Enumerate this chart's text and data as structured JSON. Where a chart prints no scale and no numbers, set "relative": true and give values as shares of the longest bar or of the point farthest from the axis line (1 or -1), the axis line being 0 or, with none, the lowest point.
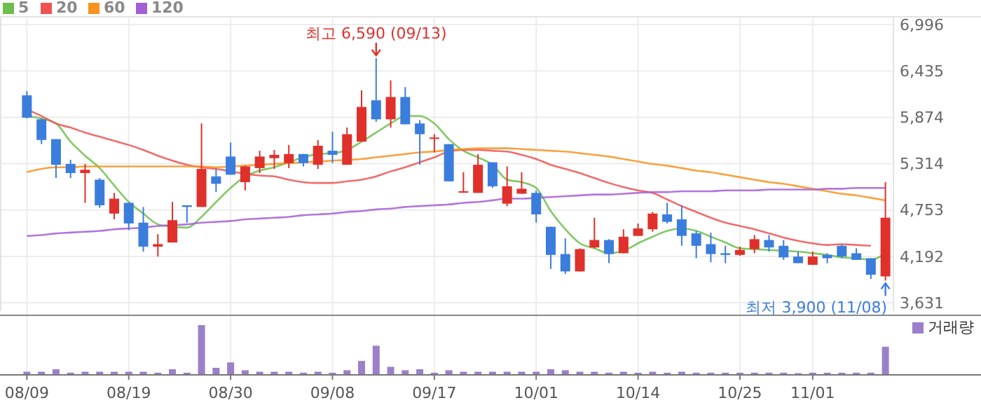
{
  "chart_data": [
    {
      "type": "candlestick",
      "categories": [
        null,
        null,
        null,
        null,
        null,
        null,
        null,
        null,
        null,
        null,
        null,
        null,
        null,
        null,
        null,
        null,
        null,
        null,
        null,
        null,
        null,
        null,
        null,
        null,
        null,
        null,
        null,
        null,
        null,
        null,
        null,
        null,
        null,
        null,
        null,
        null,
        null,
        null,
        null,
        null,
        null,
        null,
        null,
        null,
        null,
        null,
        null,
        null,
        null,
        null,
        null,
        null,
        null,
        null,
        null,
        null,
        null,
        null,
        null,
        null
      ],
      "ohlc": [
        [
          6140,
          6190,
          5860,
          5870
        ],
        [
          5850,
          5860,
          5550,
          5600
        ],
        [
          5610,
          5610,
          5140,
          5300
        ],
        [
          5310,
          5360,
          5140,
          5200
        ],
        [
          5200,
          5310,
          4840,
          5240
        ],
        [
          5120,
          5140,
          4780,
          4810
        ],
        [
          4710,
          4960,
          4640,
          4890
        ],
        [
          4840,
          4840,
          4510,
          4590
        ],
        [
          4600,
          4790,
          4250,
          4310
        ],
        [
          4310,
          4460,
          4190,
          4340
        ],
        [
          4360,
          4850,
          4360,
          4630
        ],
        [
          4810,
          4810,
          4600,
          4790
        ],
        [
          4790,
          5800,
          4790,
          5250
        ],
        [
          5160,
          5250,
          4970,
          5070
        ],
        [
          5400,
          5570,
          5180,
          5180
        ],
        [
          5090,
          5290,
          4990,
          5280
        ],
        [
          5260,
          5470,
          5200,
          5400
        ],
        [
          5380,
          5480,
          5250,
          5420
        ],
        [
          5320,
          5540,
          5260,
          5430
        ],
        [
          5430,
          5430,
          5280,
          5320
        ],
        [
          5300,
          5600,
          5250,
          5530
        ],
        [
          5470,
          5700,
          5320,
          5420
        ],
        [
          5300,
          5750,
          5300,
          5670
        ],
        [
          5580,
          6200,
          5580,
          6000
        ],
        [
          6080,
          6590,
          5820,
          5850
        ],
        [
          5850,
          6320,
          5750,
          6120
        ],
        [
          6120,
          6240,
          5790,
          5790
        ],
        [
          5800,
          5840,
          5300,
          5670
        ],
        [
          5620,
          5670,
          5450,
          5630
        ],
        [
          5550,
          5550,
          5100,
          5100
        ],
        [
          4970,
          5210,
          4960,
          4980
        ],
        [
          4960,
          5430,
          4960,
          5300
        ],
        [
          5330,
          5330,
          5020,
          5040
        ],
        [
          4830,
          5280,
          4800,
          5040
        ],
        [
          4950,
          5210,
          4950,
          5010
        ],
        [
          4960,
          4990,
          4600,
          4700
        ],
        [
          4550,
          4550,
          4040,
          4210
        ],
        [
          4220,
          4410,
          3980,
          4010
        ],
        [
          4010,
          4290,
          4010,
          4280
        ],
        [
          4300,
          4660,
          4290,
          4390
        ],
        [
          4390,
          4400,
          4110,
          4220
        ],
        [
          4230,
          4520,
          4230,
          4430
        ],
        [
          4440,
          4590,
          4440,
          4530
        ],
        [
          4520,
          4730,
          4490,
          4710
        ],
        [
          4700,
          4840,
          4590,
          4610
        ],
        [
          4640,
          4810,
          4320,
          4440
        ],
        [
          4470,
          4500,
          4170,
          4320
        ],
        [
          4340,
          4480,
          4120,
          4220
        ],
        [
          4230,
          4320,
          4110,
          4210
        ],
        [
          4210,
          4310,
          4200,
          4270
        ],
        [
          4280,
          4450,
          4230,
          4400
        ],
        [
          4390,
          4450,
          4250,
          4300
        ],
        [
          4320,
          4390,
          4150,
          4180
        ],
        [
          4190,
          4250,
          4110,
          4110
        ],
        [
          4090,
          4250,
          4090,
          4190
        ],
        [
          4210,
          4230,
          4110,
          4170
        ],
        [
          4320,
          4340,
          4170,
          4190
        ],
        [
          4230,
          4290,
          4150,
          4150
        ],
        [
          4170,
          4170,
          3920,
          3970
        ],
        [
          3950,
          5090,
          3900,
          4660
        ]
      ],
      "series": [
        {
          "name": "5",
          "type": "line",
          "color": "#6cbf4a",
          "values": [
            5890,
            5860,
            5800,
            5580,
            5410,
            5260,
            5050,
            4850,
            4710,
            4580,
            4550,
            4540,
            4670,
            4850,
            5020,
            5160,
            5230,
            5270,
            5330,
            5390,
            5430,
            5440,
            5480,
            5580,
            5690,
            5800,
            5890,
            5890,
            5800,
            5610,
            5470,
            5390,
            5300,
            5120,
            5090,
            5020,
            4740,
            4520,
            4350,
            4290,
            4230,
            4260,
            4350,
            4430,
            4500,
            4530,
            4500,
            4430,
            4360,
            4290,
            4280,
            4270,
            4260,
            4250,
            4230,
            4210,
            4180,
            4170,
            4150,
            4230
          ]
        },
        {
          "name": "20",
          "type": "line",
          "color": "#f05252",
          "values": [
            5970,
            5890,
            5800,
            5750,
            5690,
            5640,
            5590,
            5540,
            5480,
            5410,
            5350,
            5300,
            5270,
            5250,
            5220,
            5190,
            5170,
            5160,
            5120,
            5090,
            5080,
            5080,
            5100,
            5120,
            5160,
            5220,
            5270,
            5330,
            5390,
            5460,
            5480,
            5480,
            5470,
            5460,
            5420,
            5370,
            5300,
            5250,
            5200,
            5140,
            5080,
            5030,
            4990,
            4960,
            4880,
            4800,
            4730,
            4660,
            4600,
            4560,
            4520,
            4470,
            4420,
            4380,
            4350,
            4330,
            4340,
            4330,
            4320,
            null
          ]
        },
        {
          "name": "60",
          "type": "line",
          "color": "#f7931e",
          "values": [
            5210,
            5250,
            5270,
            5270,
            5280,
            5280,
            5280,
            5280,
            5280,
            5280,
            5280,
            5280,
            5280,
            5270,
            5280,
            5290,
            5300,
            5310,
            5320,
            5330,
            5340,
            5350,
            5360,
            5370,
            5390,
            5410,
            5430,
            5450,
            5460,
            5480,
            5490,
            5500,
            5500,
            5500,
            5490,
            5480,
            5470,
            5460,
            5440,
            5420,
            5400,
            5370,
            5340,
            5310,
            5290,
            5260,
            5230,
            5210,
            5180,
            5150,
            5120,
            5090,
            5070,
            5040,
            5010,
            4980,
            4950,
            4930,
            4900,
            4870
          ]
        },
        {
          "name": "120",
          "type": "line",
          "color": "#a35fd6",
          "values": [
            4440,
            4450,
            4470,
            4480,
            4490,
            4500,
            4520,
            4530,
            4540,
            4560,
            4570,
            4580,
            4600,
            4610,
            4620,
            4640,
            4650,
            4660,
            4670,
            4690,
            4700,
            4710,
            4730,
            4740,
            4760,
            4770,
            4790,
            4800,
            4810,
            4820,
            4840,
            4850,
            4870,
            4890,
            4890,
            4900,
            4910,
            4920,
            4930,
            4940,
            4940,
            4950,
            4960,
            4970,
            4970,
            4980,
            4980,
            4980,
            4990,
            4990,
            4990,
            5000,
            5000,
            5000,
            5000,
            5010,
            5010,
            5020,
            5020,
            5020
          ]
        }
      ],
      "ylim": [
        3530,
        7090
      ],
      "yticks": [
        {
          "value": 3631,
          "label": "3,631"
        },
        {
          "value": 4192,
          "label": "4,192"
        },
        {
          "value": 4753,
          "label": "4,753"
        },
        {
          "value": 5314,
          "label": "5,314"
        },
        {
          "value": 5874,
          "label": "5,874"
        },
        {
          "value": 6435,
          "label": "6,435"
        },
        {
          "value": 6996,
          "label": "6,996"
        }
      ],
      "grid": true,
      "legend": "top left",
      "tick_labels": "y",
      "annotations": [
        "최고 6,590 (09/13)",
        "최저 3,900 (11/08)"
      ]
    },
    {
      "type": "bar",
      "relative": true,
      "categories": [
        "08/09",
        null,
        null,
        null,
        null,
        null,
        null,
        "08/19",
        null,
        null,
        null,
        null,
        null,
        null,
        "08/30",
        null,
        null,
        null,
        null,
        null,
        null,
        "09/08",
        null,
        null,
        null,
        null,
        null,
        null,
        "09/17",
        null,
        null,
        null,
        null,
        null,
        null,
        "10/01",
        null,
        null,
        null,
        null,
        null,
        null,
        "10/14",
        null,
        null,
        null,
        null,
        null,
        null,
        "10/25",
        null,
        null,
        null,
        null,
        "11/01",
        null,
        null,
        null,
        null,
        null
      ],
      "series": [
        {
          "name": "거래량",
          "color": "#9b80c9",
          "values": [
            0.05,
            0.05,
            0.1,
            0.03,
            0.05,
            0.05,
            0.05,
            0.05,
            0.05,
            0.03,
            0.1,
            0.03,
            1,
            0.13,
            0.24,
            0.08,
            0.05,
            0.05,
            0.05,
            0.03,
            0.05,
            0.03,
            0.08,
            0.27,
            0.58,
            0.15,
            0.08,
            0.1,
            0.03,
            0.08,
            0.05,
            0.05,
            0.05,
            0.05,
            0.05,
            0.05,
            0.1,
            0.08,
            0.05,
            0.05,
            0.03,
            0.05,
            0.03,
            0.05,
            0.03,
            0.05,
            0.03,
            0.03,
            0.03,
            0.03,
            0.03,
            0.03,
            0.03,
            0.02,
            0.03,
            0.03,
            0.03,
            0.03,
            0.03,
            0.56
          ]
        }
      ],
      "legend": "top right",
      "tick_labels": "x"
    }
  ]
}
